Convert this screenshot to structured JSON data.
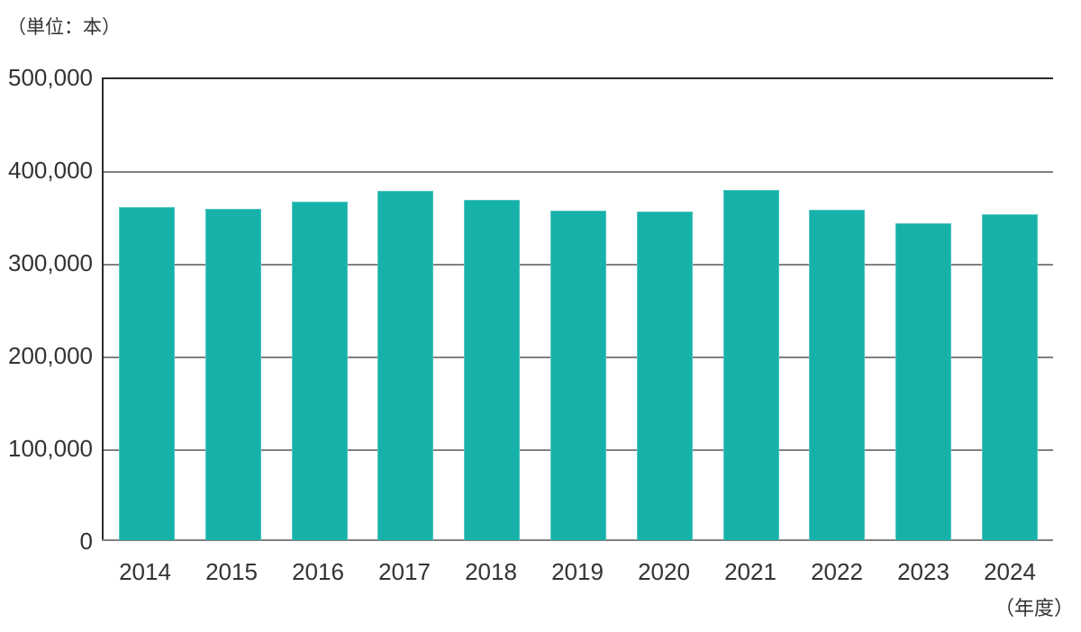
{
  "unit_label": "（単位：本）",
  "axis_suffix": "（年度）",
  "colors": {
    "bar": "#16b2aa",
    "grid": "#808080",
    "axis": "#2b2b2b",
    "text": "#333333"
  },
  "chart_data": {
    "type": "bar",
    "title": "",
    "xlabel": "（年度）",
    "ylabel": "（単位：本）",
    "categories": [
      "2014",
      "2015",
      "2016",
      "2017",
      "2018",
      "2019",
      "2020",
      "2021",
      "2022",
      "2023",
      "2024"
    ],
    "values": [
      360000,
      358000,
      366000,
      377000,
      368000,
      356000,
      355000,
      378000,
      357000,
      342000,
      352000
    ],
    "ylim": [
      0,
      500000
    ],
    "ytick_interval": 100000,
    "ytick_labels": [
      "0",
      "100,000",
      "200,000",
      "300,000",
      "400,000",
      "500,000"
    ],
    "grid": true,
    "legend": false,
    "bar_color": "#16b2aa"
  }
}
